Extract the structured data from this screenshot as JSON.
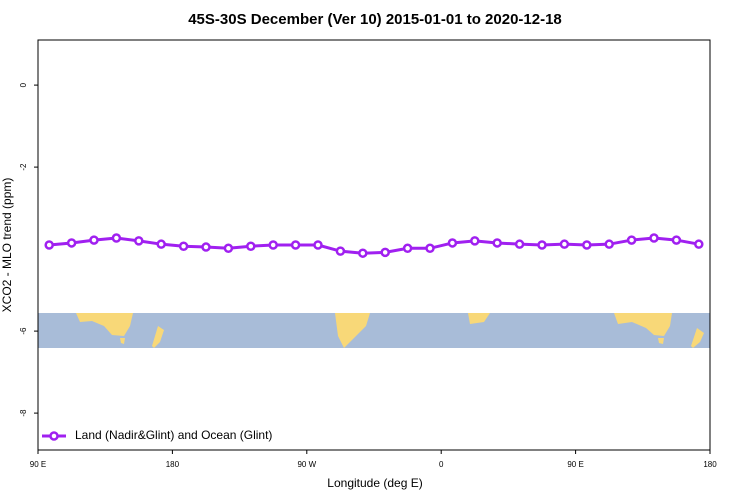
{
  "chart_data": {
    "type": "line",
    "title": "45S-30S December (Ver 10)   2015-01-01 to 2020-12-18",
    "x_label": "Longitude (deg E)",
    "y_label": "XCO2 - MLO trend (ppm)",
    "x": [
      97.5,
      112.5,
      127.5,
      142.5,
      157.5,
      172.5,
      187.5,
      202.5,
      217.5,
      232.5,
      247.5,
      262.5,
      277.5,
      292.5,
      307.5,
      322.5,
      337.5,
      352.5,
      367.5,
      382.5,
      397.5,
      412.5,
      427.5,
      442.5,
      457.5,
      472.5,
      487.5,
      502.5,
      517.5,
      532.5
    ],
    "series": [
      {
        "name": "Land (Nadir&Glint) and Ocean (Glint)",
        "color": "#a020f0",
        "values": [
          -3.9,
          -3.85,
          -3.78,
          -3.73,
          -3.8,
          -3.88,
          -3.93,
          -3.95,
          -3.98,
          -3.93,
          -3.9,
          -3.9,
          -3.9,
          -4.05,
          -4.1,
          -4.08,
          -3.98,
          -3.98,
          -3.85,
          -3.8,
          -3.85,
          -3.88,
          -3.9,
          -3.88,
          -3.9,
          -3.88,
          -3.78,
          -3.73,
          -3.78,
          -3.88
        ]
      }
    ],
    "xlim": [
      90,
      540
    ],
    "xticks": [
      {
        "value": 90,
        "label": "90 E"
      },
      180,
      {
        "value": 270,
        "label": "90 W"
      },
      {
        "value": 360,
        "label": "0"
      },
      {
        "value": 450,
        "label": "90 E"
      },
      {
        "value": 540,
        "label": "180"
      }
    ],
    "ylim": [
      -8.9,
      1.1
    ],
    "yticks": [
      -8,
      -6,
      -2,
      0
    ],
    "legend": "bottom-left"
  }
}
